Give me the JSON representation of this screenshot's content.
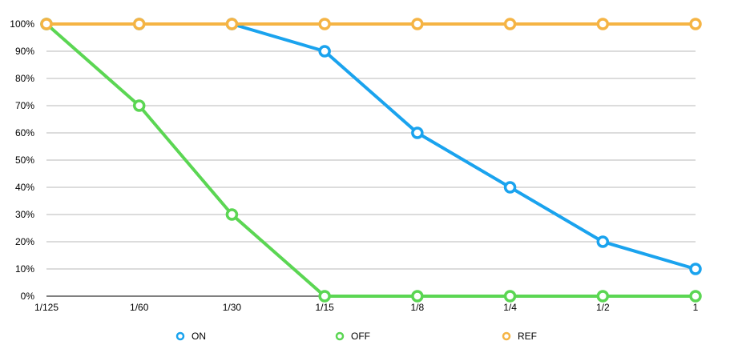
{
  "chart_data": {
    "type": "line",
    "title": "",
    "xlabel": "",
    "ylabel": "",
    "categories": [
      "1/125",
      "1/60",
      "1/30",
      "1/15",
      "1/8",
      "1/4",
      "1/2",
      "1"
    ],
    "y_ticks": [
      "0%",
      "10%",
      "20%",
      "30%",
      "40%",
      "50%",
      "60%",
      "70%",
      "80%",
      "90%",
      "100%"
    ],
    "ylim": [
      0,
      100
    ],
    "y_unit": "%",
    "grid": true,
    "legend_position": "bottom",
    "series": [
      {
        "name": "ON",
        "color": "#1aa3ee",
        "values": [
          100,
          100,
          100,
          90,
          60,
          40,
          20,
          10
        ]
      },
      {
        "name": "OFF",
        "color": "#5bd653",
        "values": [
          100,
          70,
          30,
          0,
          0,
          0,
          0,
          0
        ]
      },
      {
        "name": "REF",
        "color": "#f5b444",
        "values": [
          100,
          100,
          100,
          100,
          100,
          100,
          100,
          100
        ]
      }
    ]
  }
}
